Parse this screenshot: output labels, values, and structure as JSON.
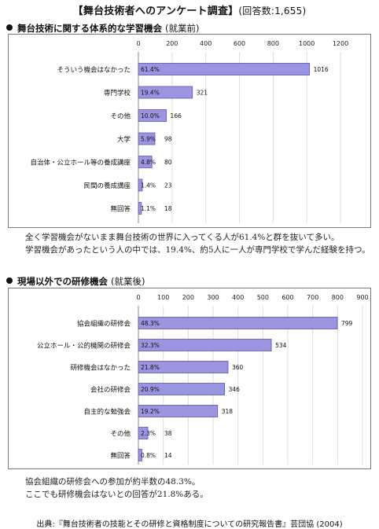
{
  "page": {
    "title": "【舞台技術者へのアンケート調査】",
    "respondents": "(回答数:1,655)",
    "source": "出典:『舞台技術者の技能とその研修と資格制度についての研究報告書』芸団協 (2004)"
  },
  "sections": [
    {
      "heading": "舞台技術に関する体系的な学習機会",
      "heading_paren": "(就業前)",
      "notes": [
        "全く学習機会がないまま舞台技術の世界に入ってくる人が61.4%と群を抜いて多い。",
        "学習機会があったという人の中では、19.4%、約5人に一人が専門学校で学んだ経験を持つ。"
      ]
    },
    {
      "heading": "現場以外での研修機会",
      "heading_paren": "(就業後)",
      "notes": [
        "協会組織の研修会への参加が約半数の48.3%。",
        "ここでも研修機会はないとの回答が21.8%ある。"
      ]
    }
  ],
  "chart_data": [
    {
      "type": "bar",
      "orientation": "horizontal",
      "categories": [
        "そういう機会はなかった",
        "専門学校",
        "その他",
        "大学",
        "自治体・公立ホール等の養成講座",
        "民間の養成講座",
        "無回答"
      ],
      "values": [
        1016,
        321,
        166,
        98,
        80,
        23,
        18
      ],
      "percent_labels": [
        "61.4%",
        "19.4%",
        "10.0%",
        "5.9%",
        "4.8%",
        "1.4%",
        "1.1%"
      ],
      "xlim": [
        0,
        1200
      ],
      "ticks": [
        0,
        200,
        400,
        600,
        800,
        1000,
        1200
      ],
      "bar_color": "#9b94e0",
      "bar_edge": "#5d56b3"
    },
    {
      "type": "bar",
      "orientation": "horizontal",
      "categories": [
        "協会組織の研修会",
        "公立ホール・公的機関の研修会",
        "研修機会はなかった",
        "会社の研修会",
        "自主的な勉強会",
        "その他",
        "無回答"
      ],
      "values": [
        799,
        534,
        360,
        346,
        318,
        38,
        14
      ],
      "percent_labels": [
        "48.3%",
        "32.3%",
        "21.8%",
        "20.9%",
        "19.2%",
        "2.3%",
        "0.8%"
      ],
      "xlim": [
        0,
        900
      ],
      "ticks": [
        0,
        100,
        200,
        300,
        400,
        500,
        600,
        700,
        800,
        900
      ],
      "bar_color": "#9b94e0",
      "bar_edge": "#5d56b3"
    }
  ]
}
